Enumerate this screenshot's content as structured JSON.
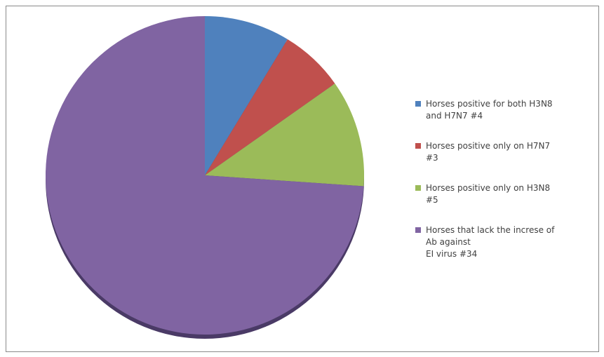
{
  "chart_data": {
    "type": "pie",
    "title": "",
    "legend_position": "right",
    "slices": [
      {
        "label": "Horses positive for both H3N8\nand H7N7 #4",
        "value": 4,
        "color": "#4f81bd"
      },
      {
        "label": "Horses positive only on H7N7\n#3",
        "value": 3,
        "color": "#c0504d"
      },
      {
        "label": "Horses positive only on H3N8\n#5",
        "value": 5,
        "color": "#9bbb59"
      },
      {
        "label": "Horses that lack the increse of\nAb against\nEI virus #34",
        "value": 34,
        "color": "#8064a2"
      }
    ]
  }
}
